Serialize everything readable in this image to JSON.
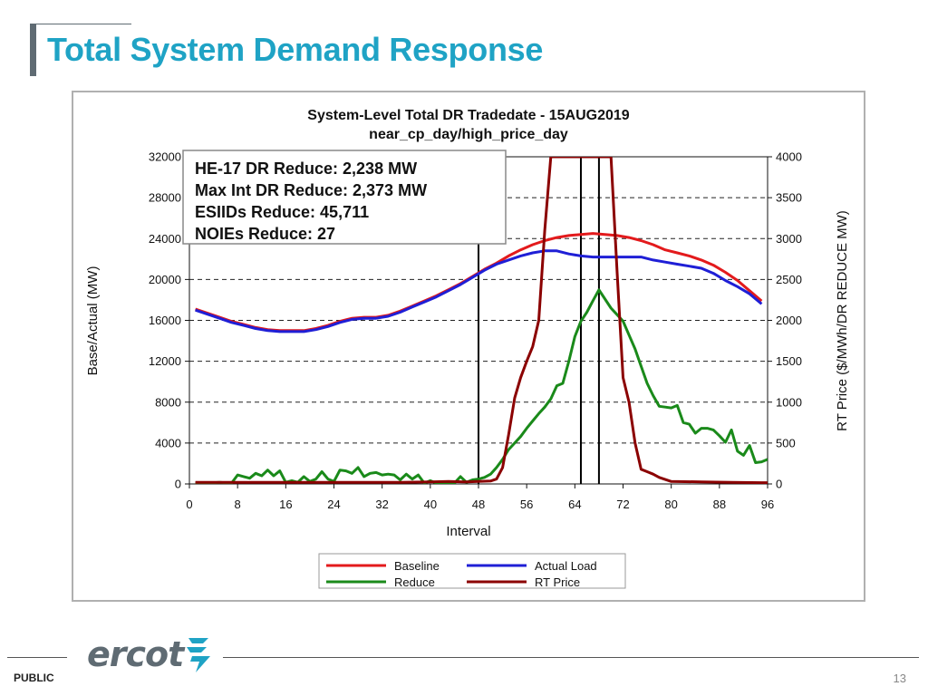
{
  "page": {
    "title": "Total System Demand Response",
    "footer_label": "PUBLIC",
    "page_number": "13",
    "logo_text": "ercot",
    "accent_color": "#1fa3c5"
  },
  "chart_data": {
    "type": "line",
    "title": "System-Level Total DR  Tradedate - 15AUG2019",
    "subtitle": "near_cp_day/high_price_day",
    "xlabel": "Interval",
    "ylabel": "Base/Actual (MW)",
    "y2label": "RT Price ($/MWh/DR REDUCE MW)",
    "xlim": [
      0,
      96
    ],
    "ylim": [
      0,
      32000
    ],
    "y2lim": [
      0,
      4000
    ],
    "x_ticks": [
      "0",
      "8",
      "16",
      "24",
      "32",
      "40",
      "48",
      "56",
      "64",
      "72",
      "80",
      "88",
      "96"
    ],
    "y_ticks": [
      "0",
      "4000",
      "8000",
      "12000",
      "16000",
      "20000",
      "24000",
      "28000",
      "32000"
    ],
    "y2_ticks": [
      "0",
      "500",
      "1000",
      "1500",
      "2000",
      "2500",
      "3000",
      "3500",
      "4000"
    ],
    "grid": "dashed horizontal",
    "vertical_markers": [
      48,
      65,
      68
    ],
    "annotation": [
      "HE-17 DR Reduce: 2,238 MW",
      "Max Int DR Reduce: 2,373 MW",
      "ESIIDs Reduce: 45,711",
      "NOIEs Reduce: 27"
    ],
    "legend_position": "bottom",
    "series": [
      {
        "name": "Baseline",
        "axis": "left",
        "color": "#e31a1c",
        "x": [
          1,
          3,
          5,
          7,
          9,
          11,
          13,
          15,
          17,
          19,
          21,
          23,
          25,
          27,
          29,
          31,
          33,
          35,
          37,
          39,
          41,
          43,
          45,
          47,
          49,
          51,
          53,
          55,
          57,
          59,
          61,
          63,
          65,
          67,
          69,
          71,
          73,
          75,
          77,
          79,
          81,
          83,
          85,
          87,
          89,
          91,
          93,
          95
        ],
        "y": [
          17100,
          16700,
          16300,
          15900,
          15600,
          15300,
          15100,
          15000,
          15000,
          15000,
          15200,
          15500,
          15900,
          16200,
          16300,
          16300,
          16500,
          16900,
          17400,
          17900,
          18400,
          19000,
          19600,
          20300,
          21000,
          21600,
          22300,
          22900,
          23400,
          23800,
          24100,
          24300,
          24400,
          24500,
          24400,
          24300,
          24100,
          23800,
          23400,
          22900,
          22600,
          22300,
          21900,
          21400,
          20700,
          19900,
          18900,
          17900
        ]
      },
      {
        "name": "Actual Load",
        "axis": "left",
        "color": "#1f1fd6",
        "x": [
          1,
          3,
          5,
          7,
          9,
          11,
          13,
          15,
          17,
          19,
          21,
          23,
          25,
          27,
          29,
          31,
          33,
          35,
          37,
          39,
          41,
          43,
          45,
          47,
          49,
          51,
          53,
          55,
          57,
          59,
          61,
          63,
          65,
          67,
          69,
          71,
          73,
          75,
          77,
          79,
          81,
          83,
          85,
          87,
          89,
          91,
          93,
          95
        ],
        "y": [
          17000,
          16600,
          16200,
          15800,
          15500,
          15200,
          15000,
          14900,
          14900,
          14900,
          15100,
          15400,
          15800,
          16100,
          16200,
          16200,
          16400,
          16800,
          17300,
          17800,
          18300,
          18900,
          19500,
          20200,
          20900,
          21500,
          21900,
          22300,
          22600,
          22800,
          22800,
          22500,
          22300,
          22200,
          22200,
          22200,
          22200,
          22200,
          21900,
          21700,
          21500,
          21300,
          21100,
          20600,
          19900,
          19300,
          18600,
          17600
        ]
      },
      {
        "name": "Reduce",
        "axis": "right",
        "color": "#1a8a1a",
        "x": [
          1,
          3,
          5,
          7,
          8,
          9,
          10,
          11,
          12,
          13,
          14,
          15,
          16,
          17,
          18,
          19,
          20,
          21,
          22,
          23,
          24,
          25,
          26,
          27,
          28,
          29,
          30,
          31,
          32,
          33,
          34,
          35,
          36,
          37,
          38,
          39,
          40,
          41,
          42,
          43,
          44,
          45,
          46,
          47,
          48,
          49,
          50,
          51,
          52,
          53,
          54,
          55,
          56,
          57,
          58,
          59,
          60,
          61,
          62,
          63,
          64,
          65,
          66,
          67,
          68,
          69,
          70,
          71,
          72,
          73,
          74,
          75,
          76,
          77,
          78,
          79,
          80,
          81,
          82,
          83,
          84,
          85,
          86,
          87,
          88,
          89,
          90,
          91,
          92,
          93,
          94,
          95,
          96
        ],
        "y": [
          10,
          10,
          20,
          10,
          110,
          90,
          70,
          130,
          100,
          170,
          100,
          160,
          20,
          40,
          20,
          90,
          30,
          60,
          150,
          60,
          30,
          170,
          160,
          130,
          200,
          90,
          130,
          140,
          110,
          120,
          110,
          50,
          120,
          60,
          110,
          10,
          40,
          10,
          10,
          10,
          10,
          90,
          20,
          50,
          60,
          80,
          120,
          200,
          300,
          420,
          500,
          580,
          680,
          770,
          860,
          940,
          1040,
          1200,
          1230,
          1500,
          1800,
          1990,
          2100,
          2240,
          2373,
          2260,
          2150,
          2070,
          1990,
          1820,
          1650,
          1440,
          1230,
          1080,
          950,
          940,
          930,
          960,
          750,
          730,
          620,
          680,
          680,
          660,
          590,
          510,
          660,
          400,
          350,
          470,
          260,
          270,
          300
        ]
      },
      {
        "name": "RT Price",
        "axis": "right",
        "color": "#8b0000",
        "x": [
          1,
          5,
          10,
          15,
          20,
          25,
          30,
          35,
          40,
          43,
          46,
          48,
          50,
          51,
          52,
          53,
          54,
          55,
          56,
          57,
          58,
          59,
          60,
          61,
          62,
          63,
          64,
          65,
          66,
          67,
          68,
          69,
          70,
          71,
          72,
          73,
          74,
          75,
          76,
          77,
          78,
          80,
          85,
          90,
          95,
          96
        ],
        "y": [
          20,
          20,
          20,
          20,
          20,
          20,
          20,
          20,
          25,
          30,
          25,
          30,
          35,
          60,
          200,
          600,
          1050,
          1300,
          1500,
          1680,
          2000,
          3100,
          4000,
          4000,
          4000,
          4000,
          4000,
          4000,
          4000,
          4000,
          4000,
          4000,
          4000,
          2600,
          1300,
          1000,
          500,
          180,
          150,
          120,
          80,
          30,
          25,
          20,
          15,
          15
        ]
      }
    ]
  }
}
